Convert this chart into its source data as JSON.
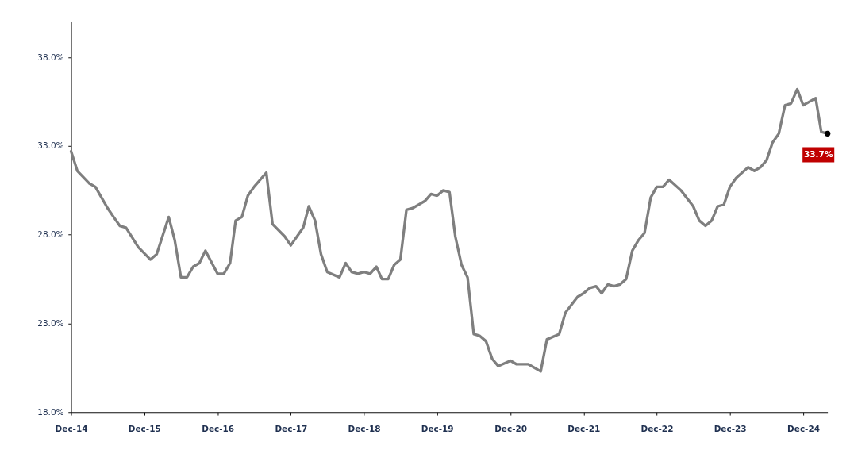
{
  "chart_data": {
    "type": "line",
    "x": [
      "2014-12",
      "2015-01",
      "2015-03",
      "2015-04",
      "2015-06",
      "2015-07",
      "2015-08",
      "2015-09",
      "2015-11",
      "2016-01",
      "2016-02",
      "2016-04",
      "2016-05",
      "2016-06",
      "2016-07",
      "2016-08",
      "2016-09",
      "2016-10",
      "2016-12",
      "2017-01",
      "2017-02",
      "2017-03",
      "2017-04",
      "2017-05",
      "2017-06",
      "2017-08",
      "2017-09",
      "2017-11",
      "2017-12",
      "2018-02",
      "2018-03",
      "2018-04",
      "2018-05",
      "2018-06",
      "2018-08",
      "2018-09",
      "2018-10",
      "2018-11",
      "2018-12",
      "2019-01",
      "2019-02",
      "2019-03",
      "2019-04",
      "2019-05",
      "2019-06",
      "2019-07",
      "2019-08",
      "2019-10",
      "2019-11",
      "2019-12",
      "2020-01",
      "2020-02",
      "2020-03",
      "2020-04",
      "2020-05",
      "2020-06",
      "2020-07",
      "2020-08",
      "2020-09",
      "2020-10",
      "2020-12",
      "2021-01",
      "2021-03",
      "2021-05",
      "2021-06",
      "2021-08",
      "2021-09",
      "2021-11",
      "2021-12",
      "2022-01",
      "2022-02",
      "2022-03",
      "2022-04",
      "2022-05",
      "2022-06",
      "2022-07",
      "2022-08",
      "2022-09",
      "2022-10",
      "2022-11",
      "2022-12",
      "2023-01",
      "2023-02",
      "2023-04",
      "2023-06",
      "2023-07",
      "2023-08",
      "2023-09",
      "2023-10",
      "2023-11",
      "2023-12",
      "2024-01",
      "2024-03",
      "2024-04",
      "2024-05",
      "2024-06",
      "2024-07",
      "2024-08",
      "2024-09",
      "2024-10",
      "2024-11",
      "2024-12",
      "2025-02",
      "2025-03",
      "2025-04"
    ],
    "series": [
      {
        "color": "#7f7f7f",
        "values": [
          32.7,
          31.6,
          30.9,
          30.7,
          29.5,
          29.0,
          28.5,
          28.4,
          27.3,
          26.6,
          26.9,
          29.0,
          27.7,
          25.6,
          25.6,
          26.2,
          26.4,
          27.1,
          25.8,
          25.8,
          26.4,
          28.8,
          29.0,
          30.2,
          30.7,
          31.5,
          28.6,
          27.9,
          27.4,
          28.4,
          29.6,
          28.8,
          26.9,
          25.9,
          25.6,
          26.4,
          25.9,
          25.8,
          25.9,
          25.8,
          26.2,
          25.5,
          25.5,
          26.3,
          26.6,
          29.4,
          29.5,
          29.9,
          30.3,
          30.2,
          30.5,
          30.4,
          27.9,
          26.3,
          25.6,
          22.4,
          22.3,
          22.0,
          21.0,
          20.6,
          20.9,
          20.7,
          20.7,
          20.3,
          22.1,
          22.4,
          23.6,
          24.5,
          24.7,
          25.0,
          25.1,
          24.7,
          25.2,
          25.1,
          25.2,
          25.5,
          27.1,
          27.7,
          28.1,
          30.1,
          30.7,
          30.7,
          31.1,
          30.5,
          29.6,
          28.8,
          28.5,
          28.8,
          29.6,
          29.7,
          30.7,
          31.2,
          31.8,
          31.6,
          31.8,
          32.2,
          33.2,
          33.7,
          35.3,
          35.4,
          36.2,
          35.3,
          35.7,
          33.8,
          33.7
        ]
      }
    ],
    "xlim": [
      "2014-12",
      "2025-04"
    ],
    "xticks": [
      {
        "value": "2014-12",
        "label": "Dec-14"
      },
      {
        "value": "2015-12",
        "label": "Dec-15"
      },
      {
        "value": "2016-12",
        "label": "Dec-16"
      },
      {
        "value": "2017-12",
        "label": "Dec-17"
      },
      {
        "value": "2018-12",
        "label": "Dec-18"
      },
      {
        "value": "2019-12",
        "label": "Dec-19"
      },
      {
        "value": "2020-12",
        "label": "Dec-20"
      },
      {
        "value": "2021-12",
        "label": "Dec-21"
      },
      {
        "value": "2022-12",
        "label": "Dec-22"
      },
      {
        "value": "2023-12",
        "label": "Dec-23"
      },
      {
        "value": "2024-12",
        "label": "Dec-24"
      }
    ],
    "ylim": [
      18,
      40
    ],
    "yticks": [
      {
        "value": 18,
        "label": "18.0%"
      },
      {
        "value": 23,
        "label": "23.0%"
      },
      {
        "value": 28,
        "label": "28.0%"
      },
      {
        "value": 33,
        "label": "33.0%"
      },
      {
        "value": 38,
        "label": "38.0%"
      }
    ],
    "grid": false,
    "legend": false,
    "marker": "none",
    "line_style": "solid",
    "annotations": [
      {
        "text": "33.7%",
        "x": "2025-04",
        "y": 33.7
      }
    ]
  }
}
